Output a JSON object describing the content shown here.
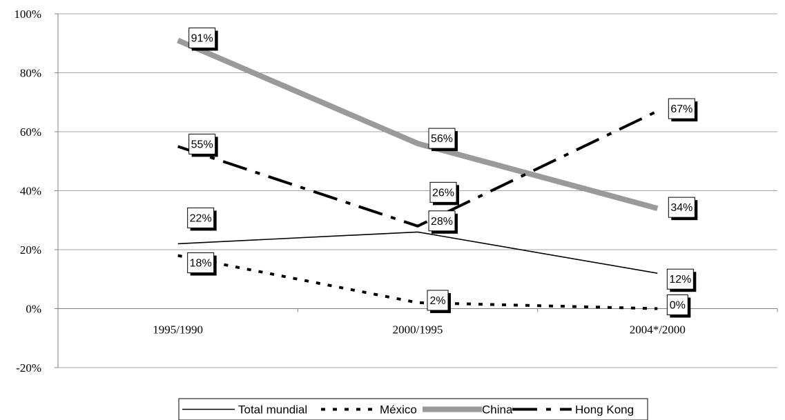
{
  "chart_data": {
    "type": "line",
    "categories": [
      "1995/1990",
      "2000/1995",
      "2004*/2000"
    ],
    "ylim": [
      -20,
      100
    ],
    "yticks": [
      "100%",
      "80%",
      "60%",
      "40%",
      "20%",
      "0%",
      "-20%"
    ],
    "grid": true,
    "legend_position": "bottom",
    "series": [
      {
        "name": "Total mundial",
        "values": [
          22,
          26,
          12
        ],
        "labels": [
          "22%",
          "26%",
          "12%"
        ],
        "color": "#000000",
        "style": "solid"
      },
      {
        "name": "México",
        "values": [
          18,
          2,
          0
        ],
        "labels": [
          "18%",
          "2%",
          "0%"
        ],
        "color": "#000000",
        "style": "dotted"
      },
      {
        "name": "China",
        "values": [
          91,
          56,
          34
        ],
        "labels": [
          "91%",
          "56%",
          "34%"
        ],
        "color": "#9a9a9a",
        "style": "thick-gray"
      },
      {
        "name": "Hong Kong",
        "values": [
          55,
          28,
          67
        ],
        "labels": [
          "55%",
          "28%",
          "67%"
        ],
        "color": "#000000",
        "style": "dash-dot"
      }
    ]
  }
}
